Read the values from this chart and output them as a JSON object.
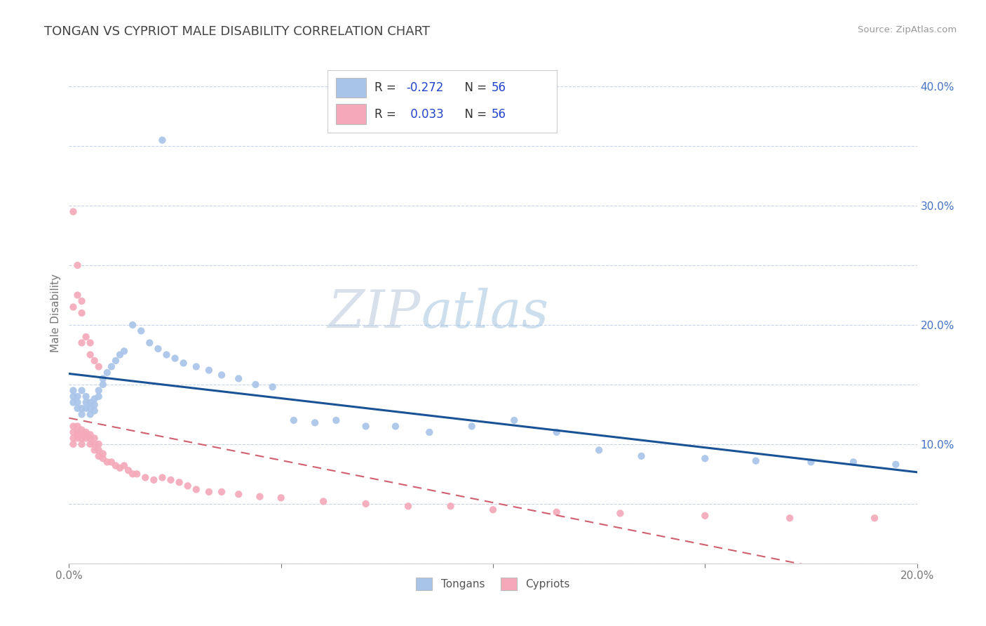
{
  "title": "TONGAN VS CYPRIOT MALE DISABILITY CORRELATION CHART",
  "source_text": "Source: ZipAtlas.com",
  "ylabel": "Male Disability",
  "R_tongan": -0.272,
  "R_cypriot": 0.033,
  "N": 56,
  "tongan_color": "#a8c4e8",
  "cypriot_color": "#f4a8b8",
  "tongan_line_color": "#1a5296",
  "cypriot_line_color": "#d06070",
  "watermark_zip": "ZIP",
  "watermark_atlas": "atlas",
  "background_color": "#ffffff",
  "grid_color": "#c8d4e8",
  "xlim": [
    0.0,
    0.2
  ],
  "ylim": [
    0.0,
    0.42
  ],
  "tongan_x": [
    0.001,
    0.001,
    0.001,
    0.002,
    0.002,
    0.002,
    0.003,
    0.003,
    0.003,
    0.004,
    0.004,
    0.004,
    0.005,
    0.005,
    0.005,
    0.006,
    0.006,
    0.006,
    0.007,
    0.007,
    0.008,
    0.008,
    0.009,
    0.01,
    0.011,
    0.012,
    0.013,
    0.015,
    0.017,
    0.019,
    0.021,
    0.023,
    0.025,
    0.027,
    0.03,
    0.033,
    0.036,
    0.04,
    0.044,
    0.048,
    0.053,
    0.058,
    0.063,
    0.07,
    0.077,
    0.085,
    0.095,
    0.105,
    0.115,
    0.125,
    0.135,
    0.15,
    0.162,
    0.175,
    0.185,
    0.195
  ],
  "tongan_y": [
    0.135,
    0.14,
    0.145,
    0.13,
    0.135,
    0.14,
    0.125,
    0.13,
    0.145,
    0.13,
    0.135,
    0.14,
    0.125,
    0.13,
    0.135,
    0.128,
    0.133,
    0.138,
    0.14,
    0.145,
    0.15,
    0.155,
    0.16,
    0.165,
    0.17,
    0.175,
    0.178,
    0.2,
    0.195,
    0.185,
    0.18,
    0.175,
    0.172,
    0.168,
    0.165,
    0.162,
    0.158,
    0.155,
    0.15,
    0.148,
    0.12,
    0.118,
    0.12,
    0.115,
    0.115,
    0.11,
    0.115,
    0.12,
    0.11,
    0.095,
    0.09,
    0.088,
    0.086,
    0.085,
    0.085,
    0.083
  ],
  "tongan_outlier_x": [
    0.022
  ],
  "tongan_outlier_y": [
    0.355
  ],
  "cypriot_x": [
    0.001,
    0.001,
    0.001,
    0.001,
    0.002,
    0.002,
    0.002,
    0.002,
    0.003,
    0.003,
    0.003,
    0.003,
    0.004,
    0.004,
    0.004,
    0.005,
    0.005,
    0.005,
    0.006,
    0.006,
    0.006,
    0.007,
    0.007,
    0.007,
    0.008,
    0.008,
    0.009,
    0.01,
    0.011,
    0.012,
    0.013,
    0.014,
    0.015,
    0.016,
    0.018,
    0.02,
    0.022,
    0.024,
    0.026,
    0.028,
    0.03,
    0.033,
    0.036,
    0.04,
    0.045,
    0.05,
    0.06,
    0.07,
    0.08,
    0.09,
    0.1,
    0.115,
    0.13,
    0.15,
    0.17,
    0.19
  ],
  "cypriot_y": [
    0.11,
    0.105,
    0.1,
    0.115,
    0.105,
    0.11,
    0.108,
    0.115,
    0.108,
    0.112,
    0.105,
    0.1,
    0.108,
    0.11,
    0.105,
    0.1,
    0.105,
    0.108,
    0.1,
    0.105,
    0.095,
    0.095,
    0.09,
    0.1,
    0.088,
    0.092,
    0.085,
    0.085,
    0.082,
    0.08,
    0.082,
    0.078,
    0.075,
    0.075,
    0.072,
    0.07,
    0.072,
    0.07,
    0.068,
    0.065,
    0.062,
    0.06,
    0.06,
    0.058,
    0.056,
    0.055,
    0.052,
    0.05,
    0.048,
    0.048,
    0.045,
    0.043,
    0.042,
    0.04,
    0.038,
    0.038
  ],
  "cypriot_high_x": [
    0.001,
    0.001,
    0.002,
    0.002,
    0.003,
    0.003
  ],
  "cypriot_high_y": [
    0.295,
    0.215,
    0.25,
    0.225,
    0.21,
    0.22
  ],
  "cypriot_mid_x": [
    0.003,
    0.004,
    0.005,
    0.005,
    0.006,
    0.007
  ],
  "cypriot_mid_y": [
    0.185,
    0.19,
    0.185,
    0.175,
    0.17,
    0.165
  ]
}
